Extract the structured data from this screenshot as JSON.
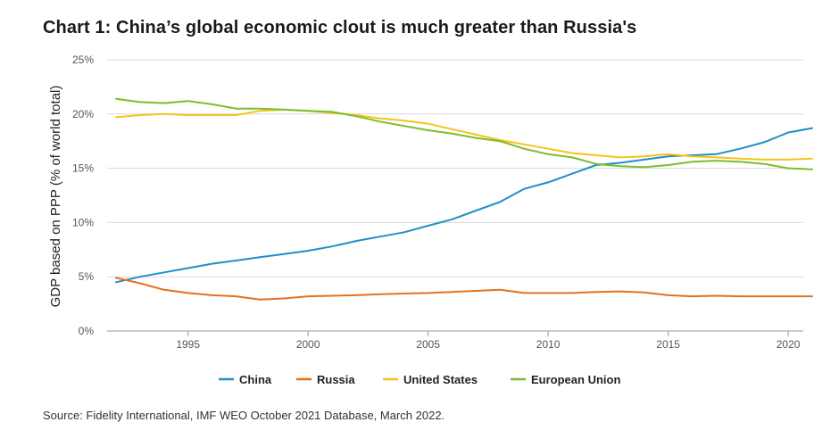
{
  "title": "Chart 1: China’s global economic clout is much greater than Russia's",
  "source": "Source: Fidelity International, IMF WEO October 2021 Database, March 2022.",
  "colors": {
    "China": "#1f8fc7",
    "Russia": "#e2721e",
    "United States": "#f7c21b",
    "European Union": "#7dbd2b",
    "grid": "#d9d9d9",
    "axis": "#999999"
  },
  "chart_data": {
    "type": "line",
    "title": "Chart 1: China’s global economic clout is much greater than Russia's",
    "xlabel": "",
    "ylabel": "GDP based on PPP (% of world total)",
    "xlim": [
      1992,
      2021
    ],
    "ylim": [
      0,
      25
    ],
    "x_ticks": [
      1995,
      2000,
      2005,
      2010,
      2015,
      2020
    ],
    "y_ticks": [
      0,
      5,
      10,
      15,
      20,
      25
    ],
    "y_tick_labels": [
      "0%",
      "5%",
      "10%",
      "15%",
      "20%",
      "25%"
    ],
    "grid": true,
    "legend": "bottom",
    "x": [
      1992,
      1993,
      1994,
      1995,
      1996,
      1997,
      1998,
      1999,
      2000,
      2001,
      2002,
      2003,
      2004,
      2005,
      2006,
      2007,
      2008,
      2009,
      2010,
      2011,
      2012,
      2013,
      2014,
      2015,
      2016,
      2017,
      2018,
      2019,
      2020,
      2021
    ],
    "series": [
      {
        "name": "China",
        "values": [
          4.5,
          5.0,
          5.4,
          5.8,
          6.2,
          6.5,
          6.8,
          7.1,
          7.4,
          7.8,
          8.3,
          8.7,
          9.1,
          9.7,
          10.3,
          11.1,
          11.9,
          13.1,
          13.7,
          14.5,
          15.3,
          15.5,
          15.8,
          16.1,
          16.2,
          16.3,
          16.8,
          17.4,
          18.3,
          18.7
        ]
      },
      {
        "name": "Russia",
        "values": [
          4.9,
          4.4,
          3.8,
          3.5,
          3.3,
          3.2,
          2.9,
          3.0,
          3.2,
          3.25,
          3.3,
          3.4,
          3.45,
          3.5,
          3.6,
          3.7,
          3.8,
          3.5,
          3.5,
          3.5,
          3.6,
          3.65,
          3.55,
          3.3,
          3.2,
          3.25,
          3.2,
          3.2,
          3.2,
          3.2
        ]
      },
      {
        "name": "United States",
        "values": [
          19.7,
          19.9,
          20.0,
          19.9,
          19.9,
          19.9,
          20.3,
          20.4,
          20.3,
          20.1,
          19.9,
          19.6,
          19.4,
          19.1,
          18.6,
          18.1,
          17.6,
          17.2,
          16.8,
          16.4,
          16.2,
          16.0,
          16.1,
          16.3,
          16.1,
          16.0,
          15.9,
          15.8,
          15.8,
          15.9
        ]
      },
      {
        "name": "European Union",
        "values": [
          21.4,
          21.1,
          21.0,
          21.2,
          20.9,
          20.5,
          20.5,
          20.4,
          20.3,
          20.2,
          19.8,
          19.3,
          18.9,
          18.5,
          18.2,
          17.8,
          17.5,
          16.8,
          16.3,
          16.0,
          15.4,
          15.2,
          15.1,
          15.3,
          15.6,
          15.7,
          15.6,
          15.4,
          15.0,
          14.9
        ]
      }
    ]
  }
}
